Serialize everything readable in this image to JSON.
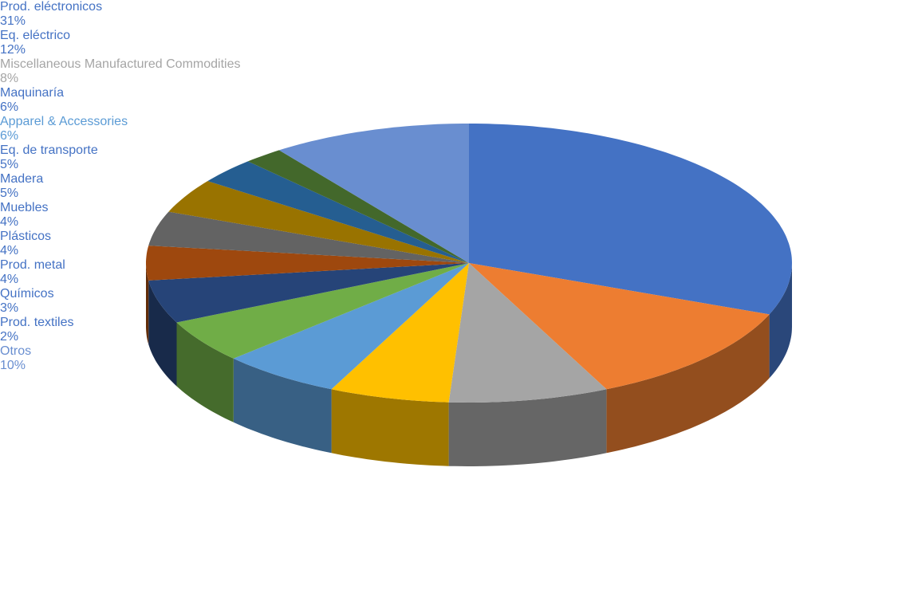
{
  "chart_data": {
    "type": "pie3d",
    "categories": [
      "Prod. eléctronicos",
      "Eq. eléctrico",
      "Miscellaneous Manufactured Commodities",
      "Maquinaría",
      "Apparel & Accessories",
      "Eq. de transporte",
      "Madera",
      "Muebles",
      "Plásticos",
      "Prod. metal",
      "Químicos",
      "Prod. textiles",
      "Otros"
    ],
    "values": [
      31,
      12,
      8,
      6,
      6,
      5,
      5,
      4,
      4,
      4,
      3,
      2,
      10
    ],
    "value_labels": [
      "31%",
      "12%",
      "8%",
      "6%",
      "6%",
      "5%",
      "5%",
      "4%",
      "4%",
      "4%",
      "3%",
      "2%",
      "10%"
    ],
    "colors": [
      "#4472c4",
      "#ed7d31",
      "#a5a5a5",
      "#ffc000",
      "#5b9bd5",
      "#70ad47",
      "#264478",
      "#9e480e",
      "#636363",
      "#997300",
      "#255e91",
      "#43682b",
      "#698ed0"
    ],
    "label_colors": [
      "#4472c4",
      "#4472c4",
      "#a5a5a5",
      "#4472c4",
      "#5b9bd5",
      "#4472c4",
      "#4472c4",
      "#4472c4",
      "#4472c4",
      "#4472c4",
      "#4472c4",
      "#4472c4",
      "#698ed0"
    ]
  }
}
